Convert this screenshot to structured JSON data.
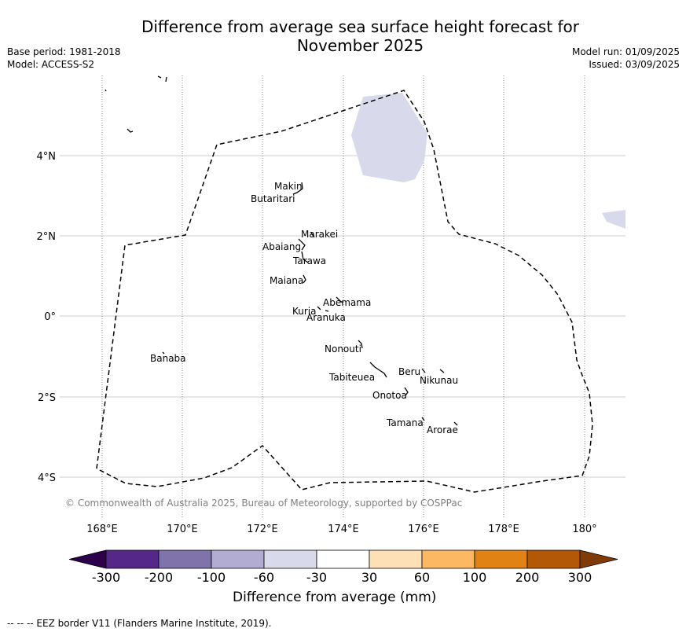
{
  "title_line1": "Difference from average sea surface height forecast for",
  "title_line2": "November 2025",
  "base_period": "Base period: 1981-2018",
  "model": "Model: ACCESS-S2",
  "model_run": "Model run: 01/09/2025",
  "issued": "Issued: 03/09/2025",
  "copyright": "© Commonwealth of Australia 2025, Bureau of Meteorology, supported by COSPPac",
  "lon_ticks": [
    "168°E",
    "170°E",
    "172°E",
    "174°E",
    "176°E",
    "178°E",
    "180°"
  ],
  "lat_ticks": [
    "4°N",
    "2°N",
    "0°",
    "2°S",
    "4°S"
  ],
  "islands": [
    {
      "name": "Makin"
    },
    {
      "name": "Butaritari"
    },
    {
      "name": "Marakei"
    },
    {
      "name": "Abaiang"
    },
    {
      "name": "Tarawa"
    },
    {
      "name": "Maiana"
    },
    {
      "name": "Abemama"
    },
    {
      "name": "Kuria"
    },
    {
      "name": "Aranuka"
    },
    {
      "name": "Nonouti"
    },
    {
      "name": "Banaba"
    },
    {
      "name": "Tabiteuea"
    },
    {
      "name": "Beru"
    },
    {
      "name": "Nikunau"
    },
    {
      "name": "Onotoa"
    },
    {
      "name": "Tamana"
    },
    {
      "name": "Arorae"
    }
  ],
  "colorbar": {
    "labels": [
      "-300",
      "-200",
      "-100",
      "-60",
      "-30",
      "30",
      "60",
      "100",
      "200",
      "300"
    ],
    "colors": [
      "#542788",
      "#8073ac",
      "#b2abd2",
      "#d8daeb",
      "#ffffff",
      "#fee0b6",
      "#fdb863",
      "#e08214",
      "#b35806"
    ],
    "under_color": "#2d004b",
    "over_color": "#7f3b08",
    "title": "Difference from average (mm)"
  },
  "anomaly_color": "#d8daeb",
  "legend_note": "--  --  -- EEZ border V11 (Flanders Marine Institute, 2019)."
}
